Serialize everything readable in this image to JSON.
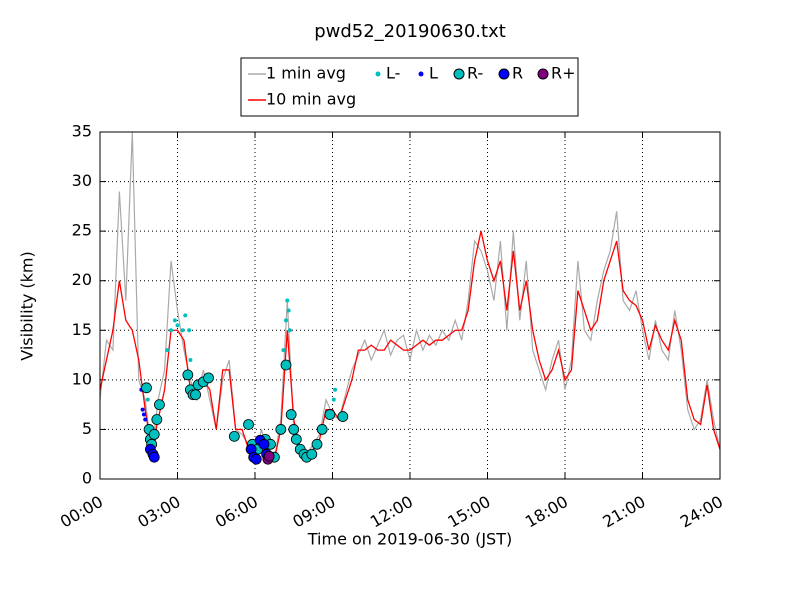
{
  "chart_data": {
    "type": "line",
    "title": "pwd52_20190630.txt",
    "xlabel": "Time on 2019-06-30 (JST)",
    "ylabel": "Visibility (km)",
    "xlim": [
      0,
      24
    ],
    "ylim": [
      0,
      35
    ],
    "grid": true,
    "legend": "upper center",
    "xticks": [
      {
        "value": 0,
        "label": "00:00"
      },
      {
        "value": 3,
        "label": "03:00"
      },
      {
        "value": 6,
        "label": "06:00"
      },
      {
        "value": 9,
        "label": "09:00"
      },
      {
        "value": 12,
        "label": "12:00"
      },
      {
        "value": 15,
        "label": "15:00"
      },
      {
        "value": 18,
        "label": "18:00"
      },
      {
        "value": 21,
        "label": "21:00"
      },
      {
        "value": 24,
        "label": "24:00"
      }
    ],
    "yticks": [
      0,
      5,
      10,
      15,
      20,
      25,
      30,
      35
    ],
    "x": [
      0,
      0.25,
      0.5,
      0.75,
      1,
      1.25,
      1.5,
      1.75,
      2,
      2.25,
      2.5,
      2.75,
      3,
      3.25,
      3.5,
      3.75,
      4,
      4.25,
      4.5,
      4.75,
      5,
      5.25,
      5.5,
      5.75,
      6,
      6.25,
      6.5,
      6.75,
      7,
      7.25,
      7.5,
      7.75,
      8,
      8.25,
      8.5,
      8.75,
      9,
      9.25,
      9.5,
      9.75,
      10,
      10.25,
      10.5,
      10.75,
      11,
      11.25,
      11.5,
      11.75,
      12,
      12.25,
      12.5,
      12.75,
      13,
      13.25,
      13.5,
      13.75,
      14,
      14.25,
      14.5,
      14.75,
      15,
      15.25,
      15.5,
      15.75,
      16,
      16.25,
      16.5,
      16.75,
      17,
      17.25,
      17.5,
      17.75,
      18,
      18.25,
      18.5,
      18.75,
      19,
      19.25,
      19.5,
      19.75,
      20,
      20.25,
      20.5,
      20.75,
      21,
      21.25,
      21.5,
      21.75,
      22,
      22.25,
      22.5,
      22.75,
      23,
      23.25,
      23.5,
      23.75,
      24
    ],
    "series": [
      {
        "name": "1 min avg",
        "color": "#aaaaaa",
        "style": "line",
        "values": [
          8,
          14,
          13,
          29,
          18,
          35,
          10,
          8,
          2.5,
          8,
          11,
          22,
          17,
          13,
          10,
          8,
          11,
          8,
          5,
          10,
          12,
          5,
          4.5,
          3.5,
          2,
          5,
          2.5,
          2,
          6,
          18,
          5,
          2.5,
          2.5,
          3.5,
          4.5,
          8,
          6.5,
          6,
          8.5,
          11,
          12.5,
          14,
          12,
          13.5,
          15,
          12.5,
          14,
          14.5,
          12,
          15,
          13,
          14.5,
          13.5,
          15,
          14,
          16,
          14,
          18,
          24,
          23,
          21,
          18,
          24,
          15,
          25,
          16,
          22,
          13,
          11,
          9,
          12,
          14,
          9,
          12,
          22,
          15,
          14,
          18,
          21,
          23,
          27,
          18,
          17,
          19,
          15,
          12,
          16,
          13,
          12,
          17,
          13,
          7,
          5,
          6,
          10,
          6,
          3
        ]
      },
      {
        "name": "10 min avg",
        "color": "#ff0000",
        "style": "line",
        "values": [
          9,
          12,
          15,
          20,
          16,
          15,
          12,
          7,
          3,
          6,
          9,
          15,
          15,
          14,
          9,
          9,
          10,
          9,
          5,
          11,
          11,
          5,
          5,
          3,
          2.5,
          4,
          3,
          2,
          5,
          15,
          6,
          3,
          2.5,
          3,
          4,
          7,
          7,
          6,
          8,
          10,
          13,
          13,
          13.5,
          13,
          13,
          14,
          13.5,
          13,
          13,
          13.5,
          14,
          13.5,
          14,
          14,
          14.5,
          15,
          15,
          17,
          22,
          25,
          22,
          20,
          22,
          17,
          23,
          17,
          20,
          15,
          12,
          10,
          11,
          13,
          10,
          11,
          19,
          17,
          15,
          16,
          20,
          22,
          24,
          19,
          18,
          17.5,
          16,
          13,
          15.5,
          14,
          13,
          16,
          14,
          8,
          6,
          5.5,
          9.5,
          5,
          3
        ]
      },
      {
        "name": "L-",
        "color": "#00bfbf",
        "style": "dot",
        "x": [
          1.85,
          2.6,
          2.75,
          2.9,
          3.0,
          3.2,
          3.3,
          3.45,
          3.5,
          7.1,
          7.2,
          7.25,
          7.3,
          7.35,
          9.05,
          9.1
        ],
        "values": [
          8,
          13,
          15,
          16,
          15.5,
          15,
          16.5,
          15,
          12,
          13,
          16,
          18,
          17,
          15,
          8,
          9
        ]
      },
      {
        "name": "L",
        "color": "#0000ff",
        "style": "dot",
        "x": [
          1.6,
          1.65,
          1.7,
          1.75
        ],
        "values": [
          9,
          7,
          6.5,
          6
        ]
      },
      {
        "name": "R-",
        "color": "#00bfbf",
        "style": "circle",
        "x": [
          1.8,
          1.9,
          1.95,
          2.0,
          2.1,
          2.2,
          2.3,
          3.4,
          3.5,
          3.6,
          3.7,
          3.8,
          4.0,
          4.2,
          5.2,
          5.75,
          5.9,
          6.1,
          6.4,
          6.6,
          6.75,
          7.0,
          7.2,
          7.4,
          7.5,
          7.6,
          7.75,
          7.9,
          8.0,
          8.2,
          8.4,
          8.6,
          8.9,
          9.4
        ],
        "values": [
          9.2,
          5,
          4,
          3.5,
          4.5,
          6,
          7.5,
          10.5,
          9,
          8.5,
          8.5,
          9.5,
          9.8,
          10.2,
          4.3,
          5.5,
          3.5,
          3,
          4,
          3.5,
          2.2,
          5,
          11.5,
          6.5,
          5,
          4,
          3,
          2.5,
          2.2,
          2.5,
          3.5,
          5,
          6.5,
          6.3
        ]
      },
      {
        "name": "R",
        "color": "#0000ff",
        "style": "circle",
        "x": [
          1.95,
          2.05,
          2.1,
          5.85,
          5.95,
          6.05,
          6.2,
          6.35,
          6.45
        ],
        "values": [
          3,
          2.5,
          2.2,
          3,
          2.2,
          2,
          3.9,
          3.5,
          2.5
        ]
      },
      {
        "name": "R+",
        "color": "#800080",
        "style": "circle",
        "x": [
          6.5,
          6.55
        ],
        "values": [
          2,
          2.3
        ]
      }
    ]
  }
}
